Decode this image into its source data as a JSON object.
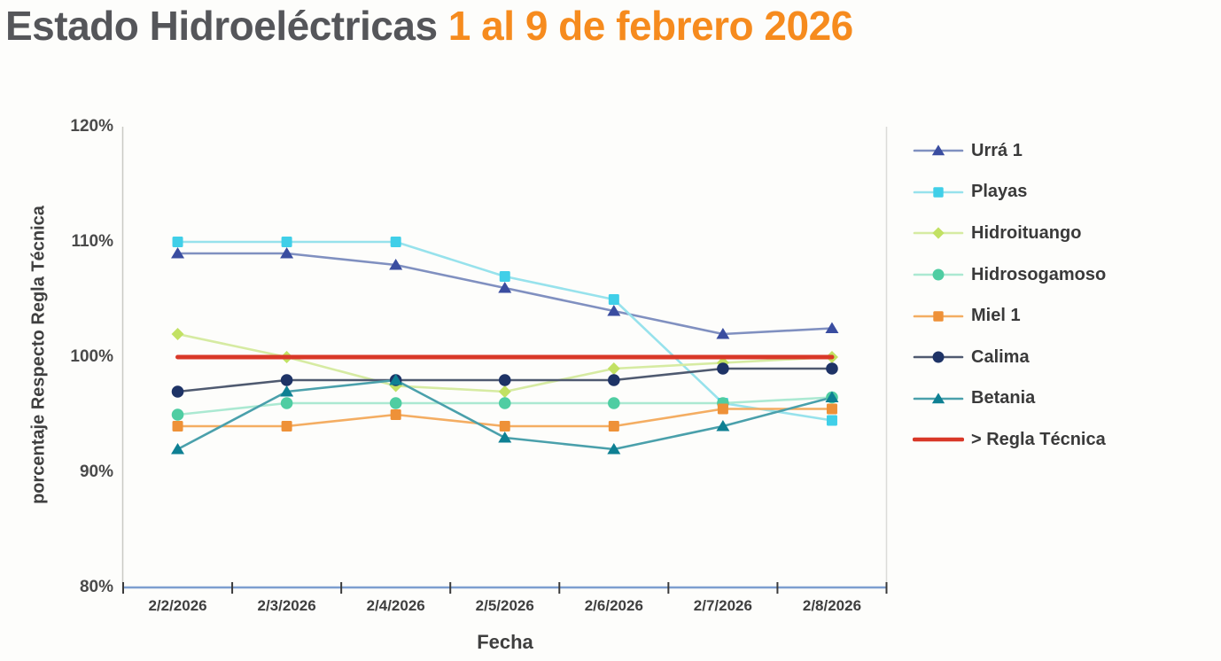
{
  "title": {
    "main": "Estado Hidroeléctricas",
    "highlight": " 1 al 9 de febrero 2026",
    "highlight_color": "#f68b1e"
  },
  "chart_data": {
    "type": "line",
    "x": [
      "2/2/2026",
      "2/3/2026",
      "2/4/2026",
      "2/5/2026",
      "2/6/2026",
      "2/7/2026",
      "2/8/2026"
    ],
    "xlabel": "Fecha",
    "ylabel": "porcentaje Respecto Regla Técnica",
    "ylim": [
      80,
      120
    ],
    "yticks": [
      80,
      90,
      100,
      110,
      120
    ],
    "ytick_suffix": "%",
    "grid": false,
    "legend_position": "right",
    "axis_colors": {
      "x_axis_line": "#7d9ecf",
      "x_axis_tick": "#3b3b3b",
      "y_axis_line": "#c9c9c4",
      "plot_right_edge": "#dcdcd8"
    },
    "series": [
      {
        "name": "Urrá 1",
        "marker": "triangle",
        "line_color": "#8090c0",
        "marker_color": "#3a4da0",
        "line_width": 2.6,
        "values": [
          109,
          109,
          108,
          106,
          104,
          102,
          102.5
        ]
      },
      {
        "name": "Playas",
        "marker": "square",
        "line_color": "#97e2ec",
        "marker_color": "#40cfe8",
        "line_width": 2.6,
        "values": [
          110,
          110,
          110,
          107,
          105,
          96,
          94.5
        ]
      },
      {
        "name": "Hidroituango",
        "marker": "diamond",
        "line_color": "#d6eba2",
        "marker_color": "#c2e163",
        "line_width": 2.6,
        "values": [
          102,
          100,
          97.5,
          97,
          99,
          99.5,
          100
        ]
      },
      {
        "name": "Hidrosogamoso",
        "marker": "circle",
        "line_color": "#abe9d2",
        "marker_color": "#4fcda2",
        "line_width": 2.6,
        "values": [
          95,
          96,
          96,
          96,
          96,
          96,
          96.5
        ]
      },
      {
        "name": "Miel 1",
        "marker": "square",
        "line_color": "#f4ad62",
        "marker_color": "#ee9138",
        "line_width": 2.6,
        "values": [
          94,
          94,
          95,
          94,
          94,
          95.5,
          95.5
        ]
      },
      {
        "name": "Calima",
        "marker": "circle",
        "line_color": "#4f5a70",
        "marker_color": "#1e3366",
        "line_width": 2.6,
        "values": [
          97,
          98,
          98,
          98,
          98,
          99,
          99
        ]
      },
      {
        "name": "Betania",
        "marker": "triangle",
        "line_color": "#4aa0ab",
        "marker_color": "#0e8093",
        "line_width": 2.6,
        "values": [
          92,
          97,
          98,
          93,
          92,
          94,
          96.5
        ]
      },
      {
        "name": "> Regla Técnica",
        "marker": "none",
        "line_color": "#d93828",
        "marker_color": "#d93828",
        "line_width": 5,
        "values": [
          100,
          100,
          100,
          100,
          100,
          100,
          100
        ]
      }
    ]
  }
}
